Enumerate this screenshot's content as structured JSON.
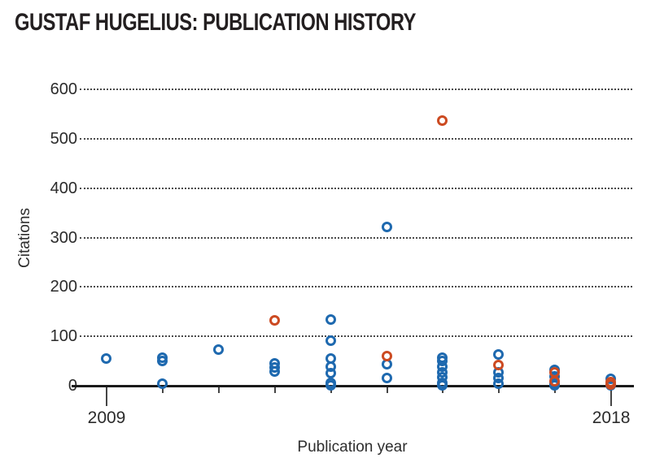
{
  "chart_data": {
    "type": "scatter",
    "title": "GUSTAF HUGELIUS: PUBLICATION HISTORY",
    "xlabel": "Publication year",
    "ylabel": "Citations",
    "y_ticks": [
      0,
      100,
      200,
      300,
      400,
      500,
      600
    ],
    "x_tick_years": [
      2009,
      2010,
      2011,
      2012,
      2013,
      2014,
      2015,
      2016,
      2017,
      2018
    ],
    "x_labeled_ticks": [
      2009,
      2018
    ],
    "xlim": [
      2008.4,
      2018.45
    ],
    "ylim": [
      0,
      620
    ],
    "grid": "horizontal-dotted",
    "legend": "none",
    "marker": "open-circle",
    "series": [
      {
        "name": "blue-publications",
        "color": "#1e69af",
        "points": [
          {
            "year": 2009,
            "citations": 55
          },
          {
            "year": 2010,
            "citations": 56
          },
          {
            "year": 2010,
            "citations": 49
          },
          {
            "year": 2010,
            "citations": 4
          },
          {
            "year": 2011,
            "citations": 72
          },
          {
            "year": 2012,
            "citations": 45
          },
          {
            "year": 2012,
            "citations": 36
          },
          {
            "year": 2012,
            "citations": 28
          },
          {
            "year": 2013,
            "citations": 134
          },
          {
            "year": 2013,
            "citations": 91
          },
          {
            "year": 2013,
            "citations": 55
          },
          {
            "year": 2013,
            "citations": 38
          },
          {
            "year": 2013,
            "citations": 25
          },
          {
            "year": 2013,
            "citations": 5
          },
          {
            "year": 2013,
            "citations": 0
          },
          {
            "year": 2014,
            "citations": 320
          },
          {
            "year": 2014,
            "citations": 42
          },
          {
            "year": 2014,
            "citations": 14
          },
          {
            "year": 2015,
            "citations": 56
          },
          {
            "year": 2015,
            "citations": 49
          },
          {
            "year": 2015,
            "citations": 38
          },
          {
            "year": 2015,
            "citations": 27
          },
          {
            "year": 2015,
            "citations": 16
          },
          {
            "year": 2015,
            "citations": 5
          },
          {
            "year": 2015,
            "citations": 0
          },
          {
            "year": 2016,
            "citations": 62
          },
          {
            "year": 2016,
            "citations": 26
          },
          {
            "year": 2016,
            "citations": 14
          },
          {
            "year": 2016,
            "citations": 3
          },
          {
            "year": 2017,
            "citations": 32
          },
          {
            "year": 2017,
            "citations": 18
          },
          {
            "year": 2017,
            "citations": 4
          },
          {
            "year": 2017,
            "citations": 0
          },
          {
            "year": 2018,
            "citations": 13
          },
          {
            "year": 2018,
            "citations": 0
          }
        ]
      },
      {
        "name": "orange-publications",
        "color": "#cc4a21",
        "points": [
          {
            "year": 2012,
            "citations": 131
          },
          {
            "year": 2014,
            "citations": 59
          },
          {
            "year": 2015,
            "citations": 537
          },
          {
            "year": 2016,
            "citations": 41
          },
          {
            "year": 2017,
            "citations": 27
          },
          {
            "year": 2017,
            "citations": 9
          },
          {
            "year": 2018,
            "citations": 6
          },
          {
            "year": 2018,
            "citations": 1
          }
        ]
      }
    ]
  }
}
